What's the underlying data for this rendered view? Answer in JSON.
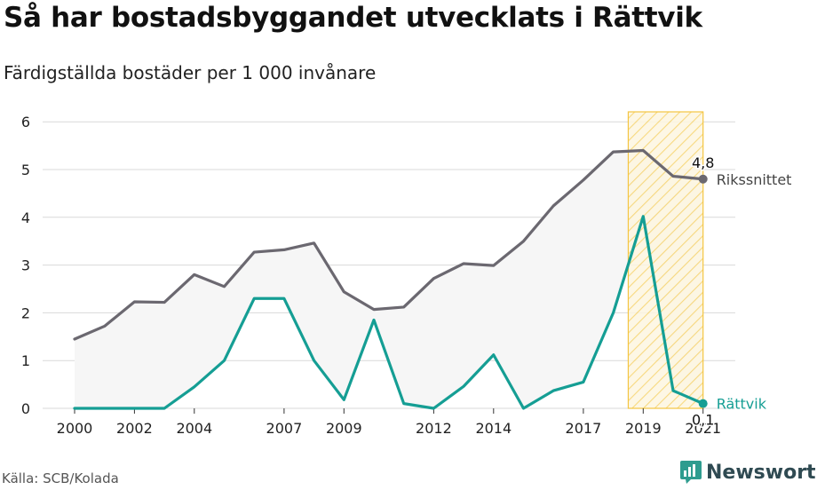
{
  "title": "Så har bostadsbyggandet utvecklats i Rättvik",
  "subtitle": "Färdigställda bostäder per 1 000 invånare",
  "source": "Källa: SCB/Kolada",
  "brand": "Newsworthy",
  "colors": {
    "riket": "#6b6870",
    "rattvik": "#159e94",
    "band_fill": "#f6f6f6",
    "highlight": "#f4c542",
    "grid": "#d9d9d9"
  },
  "chart_data": {
    "type": "line",
    "x": [
      2000,
      2001,
      2002,
      2003,
      2004,
      2005,
      2006,
      2007,
      2008,
      2009,
      2010,
      2011,
      2012,
      2013,
      2014,
      2015,
      2016,
      2017,
      2018,
      2019,
      2020,
      2021
    ],
    "x_tick_labels": [
      "2000",
      "2002",
      "2004",
      "2007",
      "2009",
      "2012",
      "2014",
      "2017",
      "2019",
      "2021"
    ],
    "y_ticks": [
      "0",
      "1",
      "2",
      "3",
      "4",
      "5",
      "6"
    ],
    "ylim": [
      0,
      6
    ],
    "grid": true,
    "highlight_range": [
      2018.5,
      2021
    ],
    "series": [
      {
        "name": "Rikssnittet",
        "values": [
          1.45,
          1.72,
          2.23,
          2.22,
          2.8,
          2.55,
          3.27,
          3.32,
          3.46,
          2.44,
          2.07,
          2.12,
          2.72,
          3.03,
          2.99,
          3.5,
          4.24,
          4.78,
          5.37,
          5.4,
          4.86,
          4.8
        ],
        "end_label": "4,8"
      },
      {
        "name": "Rättvik",
        "values": [
          0,
          0,
          0,
          0,
          0.45,
          1.0,
          2.3,
          2.3,
          1.0,
          0.18,
          1.85,
          0.1,
          0,
          0.46,
          1.12,
          0,
          0.37,
          0.55,
          2.0,
          4.02,
          0.37,
          0.1
        ],
        "end_label": "0,1"
      }
    ]
  }
}
